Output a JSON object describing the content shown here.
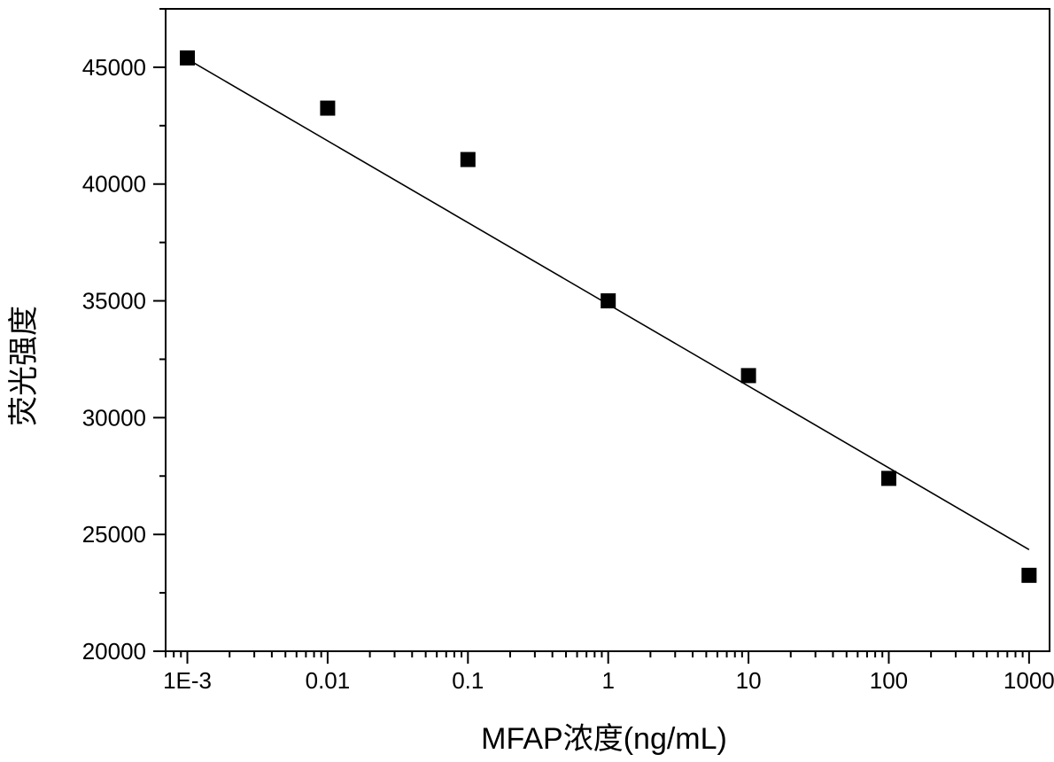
{
  "chart_data": {
    "type": "scatter",
    "title": "",
    "xlabel": "MFAP浓度(ng/mL)",
    "ylabel": "荧光强度",
    "x_scale": "log",
    "xlim": [
      0.0007,
      1400
    ],
    "ylim": [
      20000,
      47500
    ],
    "x_ticks": [
      0.001,
      0.01,
      0.1,
      1,
      10,
      100,
      1000
    ],
    "x_tick_labels": [
      "1E-3",
      "0.01",
      "0.1",
      "1",
      "10",
      "100",
      "1000"
    ],
    "y_ticks": [
      20000,
      25000,
      30000,
      35000,
      40000,
      45000
    ],
    "y_tick_labels": [
      "20000",
      "25000",
      "30000",
      "35000",
      "40000",
      "45000"
    ],
    "grid": false,
    "legend": "none",
    "series": [
      {
        "kind": "points",
        "x": [
          0.001,
          0.01,
          0.1,
          1,
          10,
          100,
          1000
        ],
        "y": [
          45400,
          43250,
          41050,
          35000,
          31800,
          27400,
          23250
        ]
      },
      {
        "kind": "fit_line",
        "x": [
          0.001,
          1000
        ],
        "y": [
          45350,
          24350
        ]
      }
    ],
    "colors": {
      "marker": "#000000",
      "line": "#000000",
      "axis": "#000000"
    }
  }
}
